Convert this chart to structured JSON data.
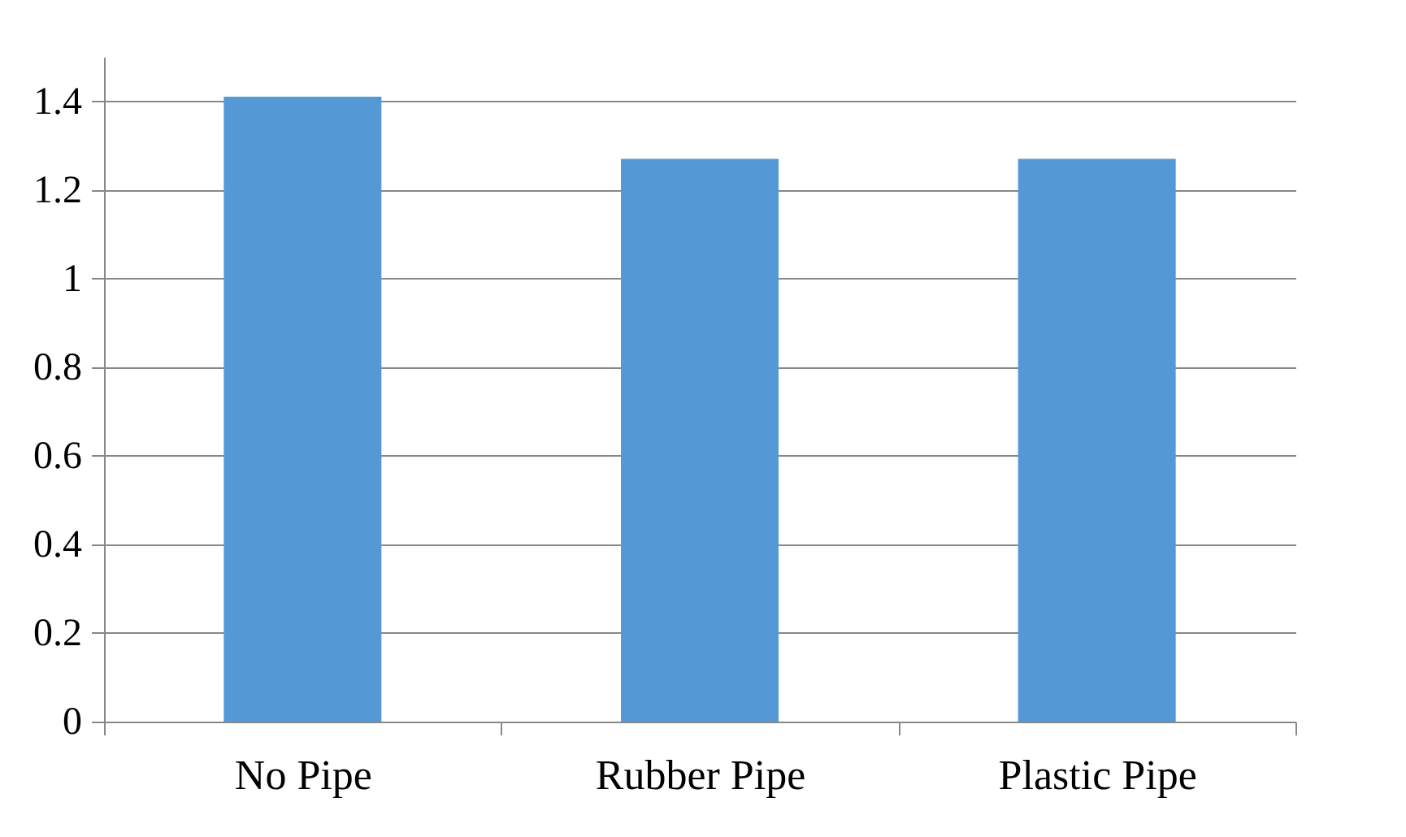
{
  "chart_data": {
    "type": "bar",
    "categories": [
      "No Pipe",
      "Rubber Pipe",
      "Plastic Pipe"
    ],
    "values": [
      1.41,
      1.27,
      1.27
    ],
    "color": "#5499d6",
    "ylim": [
      0,
      1.5
    ],
    "yticks": [
      0,
      0.2,
      0.4,
      0.6,
      0.8,
      1,
      1.2,
      1.4
    ],
    "grid": "y"
  }
}
